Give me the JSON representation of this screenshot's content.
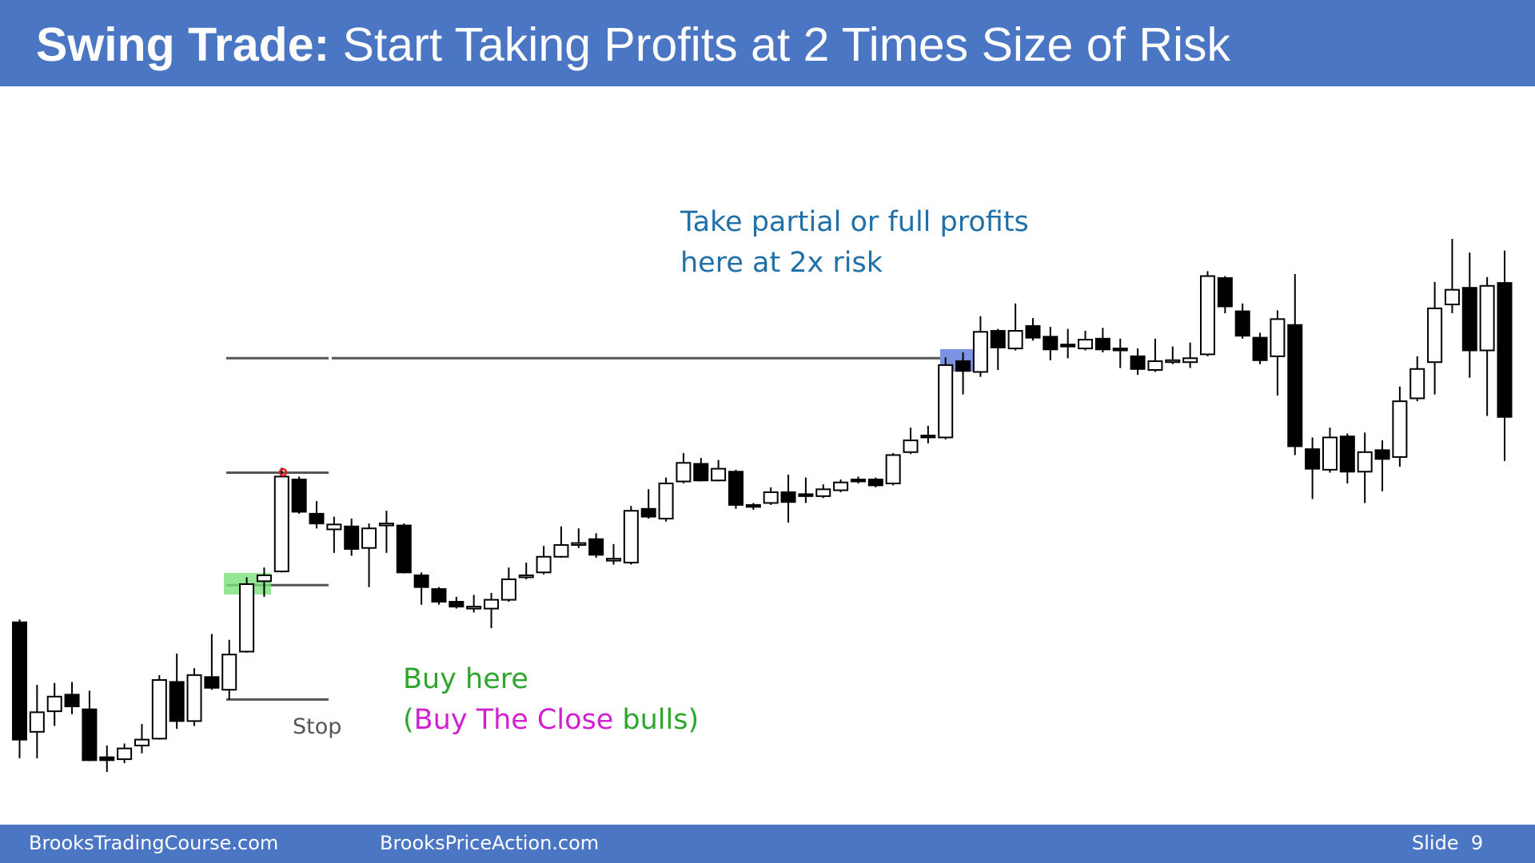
{
  "chart_data": {
    "type": "candlestick",
    "title_bold": "Swing Trade:",
    "title": " Start Taking Profits at 2 Times Size of Risk",
    "annotation_target": [
      "Take partial or full profits",
      "here at 2x risk"
    ],
    "annotation_buy": "Buy here",
    "annotation_buy_detail": [
      "(",
      "Buy The Close",
      " bulls)"
    ],
    "stop_label": "Stop",
    "open": [
      164,
      52,
      73,
      90,
      75,
      26,
      24,
      38,
      45,
      103,
      63,
      108,
      95,
      134,
      206,
      216,
      310,
      275,
      259,
      262,
      240,
      263,
      263,
      212,
      198,
      185,
      178,
      178,
      187,
      210,
      215,
      231,
      243,
      249,
      227,
      225,
      280,
      270,
      308,
      326,
      309,
      318,
      284,
      286,
      297,
      295,
      293,
      299,
      310,
      310,
      306,
      338,
      355,
      353,
      431,
      420,
      462,
      444,
      467,
      456,
      448,
      444,
      454,
      444,
      436,
      422,
      430,
      430,
      438,
      516,
      482,
      455,
      436,
      468,
      341,
      320,
      354,
      318,
      340,
      333,
      393,
      430,
      489,
      506,
      442,
      511
    ],
    "high": [
      167,
      100,
      102,
      103,
      94,
      38,
      40,
      60,
      110,
      132,
      117,
      152,
      146,
      210,
      220,
      322,
      313,
      288,
      272,
      270,
      265,
      278,
      265,
      215,
      200,
      190,
      192,
      194,
      220,
      225,
      242,
      262,
      260,
      255,
      244,
      283,
      300,
      312,
      337,
      332,
      330,
      320,
      286,
      302,
      315,
      312,
      305,
      310,
      313,
      312,
      337,
      363,
      365,
      435,
      440,
      477,
      464,
      490,
      475,
      466,
      464,
      462,
      465,
      454,
      444,
      454,
      446,
      450,
      523,
      518,
      490,
      460,
      483,
      520,
      353,
      363,
      357,
      358,
      350,
      405,
      436,
      512,
      556,
      542,
      517,
      544
    ],
    "low": [
      25,
      25,
      58,
      70,
      22,
      11,
      20,
      30,
      44,
      55,
      58,
      95,
      85,
      133,
      190,
      215,
      275,
      260,
      235,
      232,
      200,
      235,
      214,
      182,
      182,
      178,
      174,
      158,
      185,
      208,
      213,
      230,
      240,
      230,
      223,
      223,
      270,
      267,
      306,
      308,
      308,
      280,
      279,
      284,
      266,
      286,
      291,
      297,
      306,
      302,
      304,
      336,
      347,
      351,
      397,
      415,
      422,
      442,
      452,
      432,
      434,
      442,
      440,
      424,
      417,
      420,
      428,
      424,
      436,
      480,
      454,
      428,
      396,
      335,
      290,
      317,
      306,
      286,
      298,
      323,
      390,
      397,
      480,
      414,
      375,
      329
    ],
    "close": [
      44,
      72,
      88,
      78,
      23,
      23,
      35,
      44,
      105,
      63,
      110,
      97,
      131,
      203,
      212,
      313,
      277,
      265,
      264,
      239,
      260,
      265,
      215,
      200,
      185,
      180,
      180,
      187,
      208,
      212,
      231,
      243,
      245,
      233,
      229,
      278,
      272,
      306,
      327,
      309,
      321,
      284,
      282,
      297,
      287,
      293,
      300,
      307,
      308,
      304,
      335,
      350,
      353,
      427,
      421,
      461,
      445,
      462,
      455,
      443,
      446,
      453,
      443,
      442,
      423,
      431,
      432,
      434,
      518,
      487,
      457,
      432,
      474,
      344,
      321,
      353,
      318,
      338,
      331,
      390,
      423,
      485,
      504,
      442,
      508,
      374
    ],
    "bull_color": "#ffffff",
    "bear_color": "#000000",
    "levels": {
      "signal_high": 317,
      "entry": 202,
      "stop": 85,
      "target": 434
    }
  },
  "footer": {
    "left": "BrooksTradingCourse.com",
    "center": "BrooksPriceAction.com",
    "right": "Slide  9"
  }
}
